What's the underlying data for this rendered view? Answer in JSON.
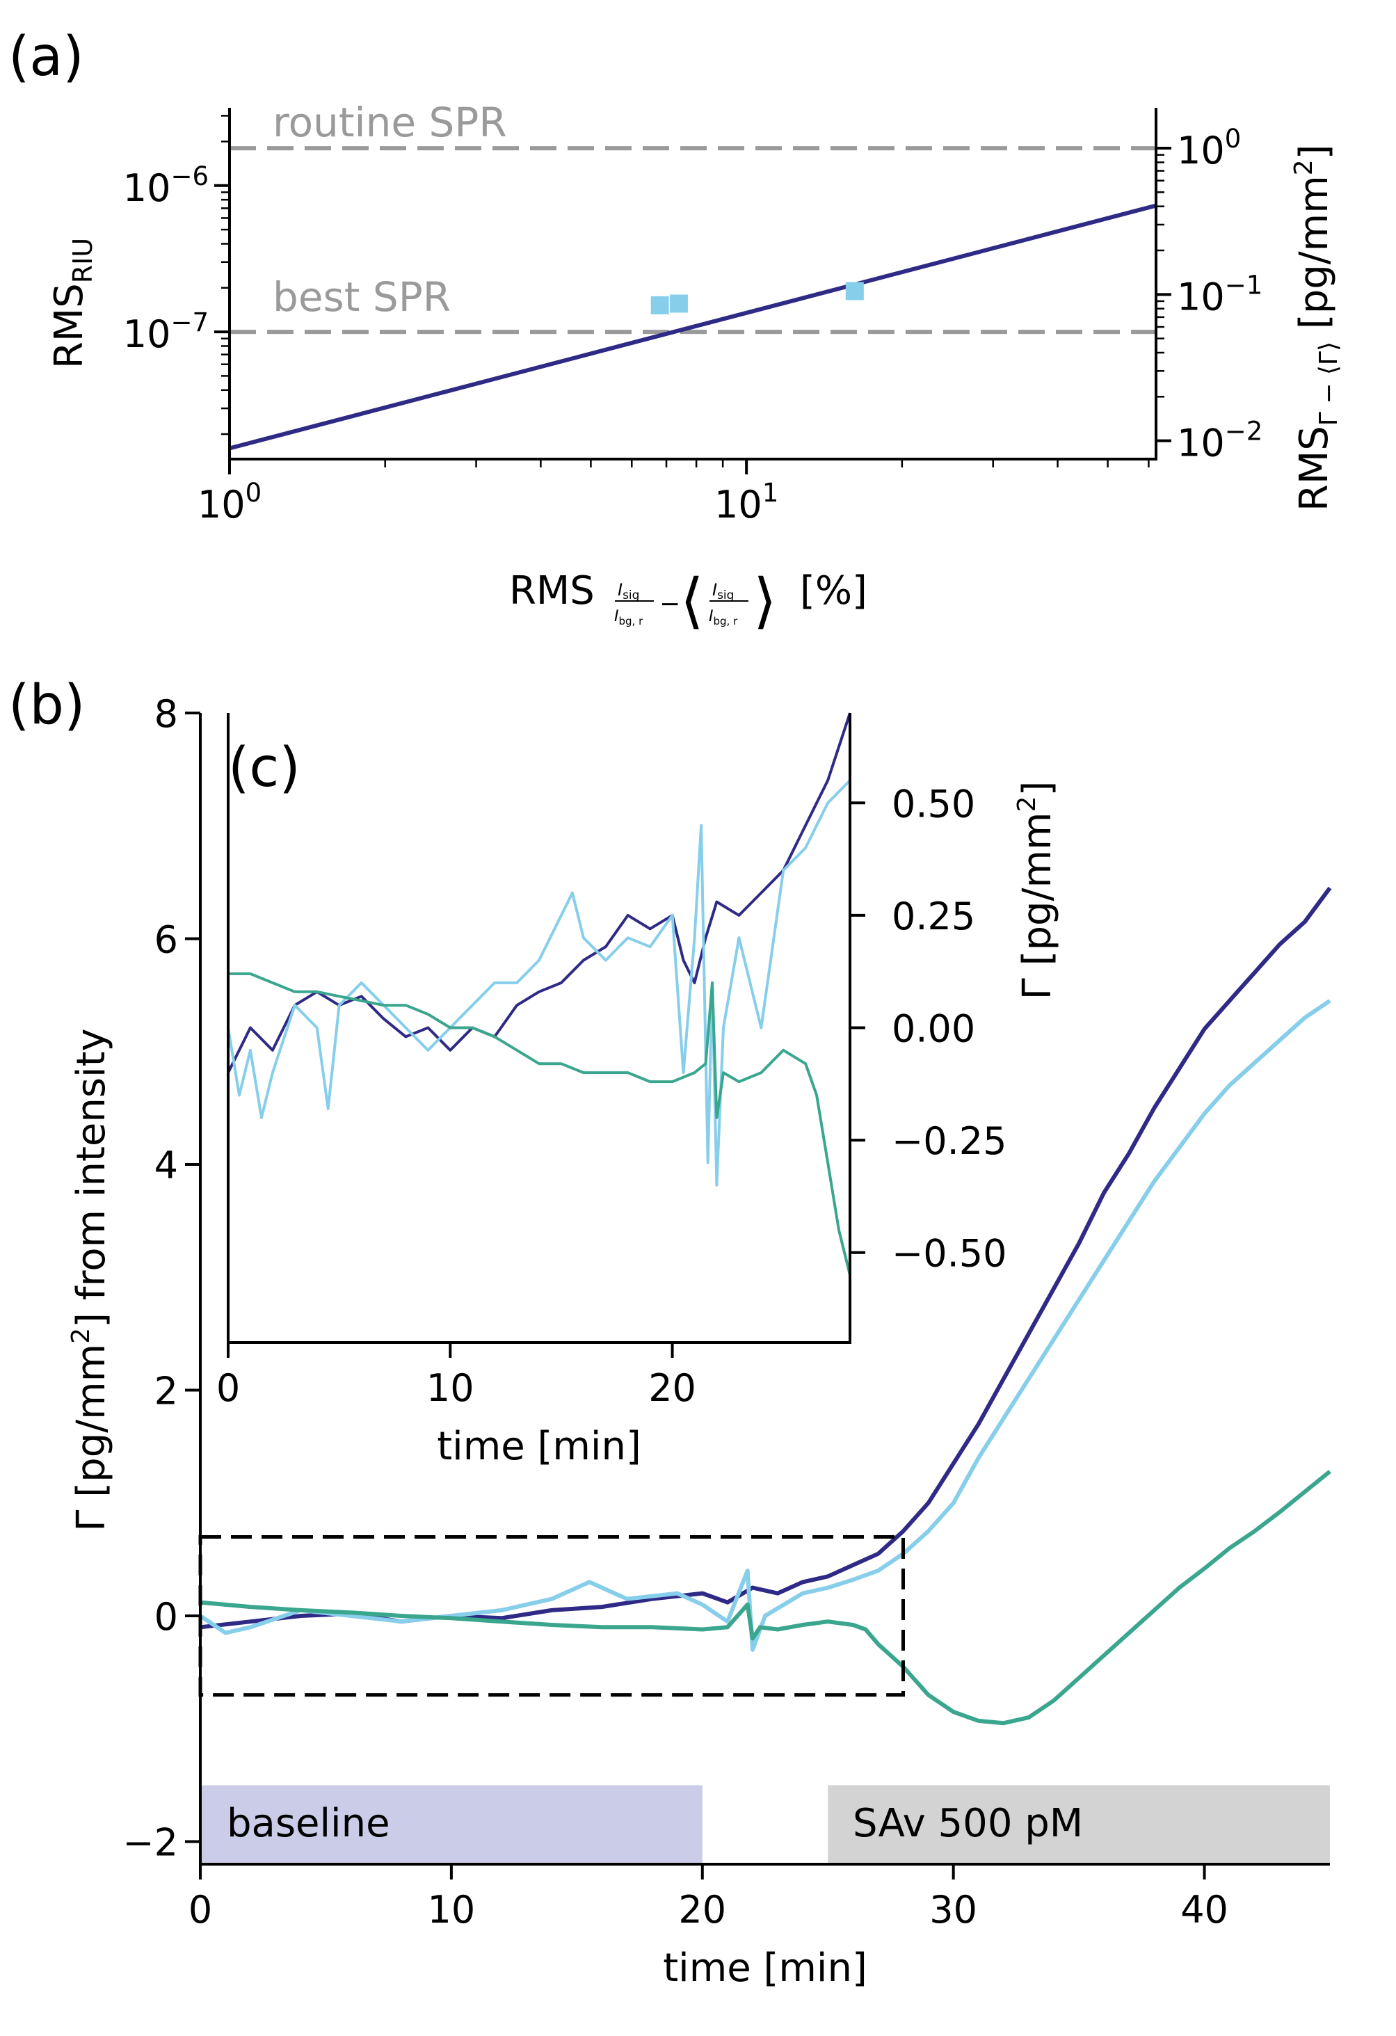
{
  "chart_data": [
    {
      "panel": "(a)",
      "type": "line",
      "xscale": "log",
      "yscale": "log",
      "xlim": [
        1,
        62
      ],
      "ylim": [
        1.35e-08,
        3.4e-06
      ],
      "xticks": [
        {
          "value": 1,
          "label": "10^0"
        },
        {
          "value": 10,
          "label": "10^1"
        }
      ],
      "yticks": [
        {
          "value": 1e-06,
          "label": "10^-6"
        },
        {
          "value": 1e-07,
          "label": "10^-7"
        }
      ],
      "xlabel": "RMS_{I_sig/I_bg,r} − ⟨I_sig/I_bg,r⟩ [%]",
      "ylabel": "RMS_RIU",
      "right_axis": {
        "label": "RMS_{Γ − ⟨Γ⟩} [pg/mm²]",
        "ticks": [
          {
            "value": 1,
            "label": "10^0"
          },
          {
            "value": 0.1,
            "label": "10^-1"
          },
          {
            "value": 0.01,
            "label": "10^-2"
          }
        ],
        "factor_per_riu": 555000
      },
      "reference_lines": [
        {
          "name": "routine SPR",
          "y": 1.8e-06,
          "color": "#9a9a9a"
        },
        {
          "name": "best SPR",
          "y": 1e-07,
          "color": "#9a9a9a"
        }
      ],
      "series": [
        {
          "name": "fit",
          "type": "line",
          "color": "#2e2a85",
          "x": [
            1,
            62
          ],
          "y": [
            1.6e-08,
            7.3e-07
          ]
        },
        {
          "name": "measurements",
          "type": "scatter",
          "color": "#87ceeb",
          "x": [
            6.8,
            7.4,
            16.2
          ],
          "y": [
            1.52e-07,
            1.56e-07,
            1.9e-07
          ]
        }
      ]
    },
    {
      "panel": "(b)",
      "type": "line",
      "xlim": [
        0,
        45
      ],
      "ylim": [
        -2.2,
        8
      ],
      "xticks": [
        0,
        10,
        20,
        30,
        40
      ],
      "yticks": [
        -2,
        0,
        2,
        4,
        6,
        8
      ],
      "xlabel": "time [min]",
      "ylabel": "Γ [pg/mm²] from intensity",
      "bands": [
        {
          "label": "baseline",
          "x0": 0,
          "x1": 20,
          "y0": -2.2,
          "y1": -1.5,
          "color": "#cacce8"
        },
        {
          "label": "SAv 500 pM",
          "x0": 25,
          "x1": 45,
          "y0": -2.2,
          "y1": -1.5,
          "color": "#d3d3d3"
        }
      ],
      "zoom_box": {
        "x0": 0,
        "x1": 28,
        "y0": -0.7,
        "y1": 0.7
      },
      "series": [
        {
          "name": "dark-blue",
          "color": "#2e2a85",
          "x": [
            0,
            2,
            4,
            6,
            8,
            10,
            12,
            14,
            16,
            18,
            20,
            21,
            22,
            23,
            24,
            25,
            26,
            27,
            28,
            29,
            30,
            31,
            32,
            33,
            34,
            35,
            36,
            37,
            38,
            39,
            40,
            41,
            42,
            43,
            44,
            45
          ],
          "y": [
            -0.1,
            -0.05,
            0.0,
            0.02,
            -0.05,
            0.0,
            -0.02,
            0.05,
            0.08,
            0.15,
            0.2,
            0.12,
            0.25,
            0.2,
            0.3,
            0.35,
            0.45,
            0.55,
            0.75,
            1.0,
            1.35,
            1.7,
            2.1,
            2.5,
            2.9,
            3.3,
            3.75,
            4.1,
            4.5,
            4.85,
            5.2,
            5.45,
            5.7,
            5.95,
            6.15,
            6.45
          ]
        },
        {
          "name": "light-blue",
          "color": "#87ceeb",
          "x": [
            0,
            1,
            2,
            4,
            6,
            8,
            10,
            12,
            14,
            15.5,
            17,
            19,
            20,
            21,
            21.8,
            22,
            22.5,
            24,
            25,
            26,
            27,
            28,
            29,
            30,
            31,
            32,
            33,
            34,
            35,
            36,
            37,
            38,
            39,
            40,
            41,
            42,
            43,
            44,
            45
          ],
          "y": [
            0.0,
            -0.15,
            -0.1,
            0.05,
            0.0,
            -0.05,
            0.0,
            0.05,
            0.15,
            0.3,
            0.15,
            0.2,
            0.1,
            -0.05,
            0.4,
            -0.3,
            0.0,
            0.2,
            0.25,
            0.32,
            0.4,
            0.55,
            0.75,
            1.0,
            1.4,
            1.75,
            2.1,
            2.45,
            2.8,
            3.15,
            3.5,
            3.85,
            4.15,
            4.45,
            4.7,
            4.9,
            5.1,
            5.3,
            5.45
          ]
        },
        {
          "name": "teal",
          "color": "#3aa68e",
          "x": [
            0,
            2,
            4,
            6,
            8,
            10,
            12,
            14,
            16,
            18,
            20,
            21,
            21.8,
            22,
            22.3,
            23,
            24,
            25,
            26,
            26.5,
            27,
            28,
            29,
            30,
            31,
            32,
            33,
            34,
            35,
            36,
            37,
            38,
            39,
            40,
            41,
            42,
            43,
            44,
            45
          ],
          "y": [
            0.12,
            0.08,
            0.05,
            0.03,
            0.0,
            -0.02,
            -0.05,
            -0.08,
            -0.1,
            -0.1,
            -0.12,
            -0.1,
            0.1,
            -0.2,
            -0.1,
            -0.12,
            -0.08,
            -0.05,
            -0.08,
            -0.12,
            -0.25,
            -0.45,
            -0.7,
            -0.85,
            -0.93,
            -0.95,
            -0.9,
            -0.75,
            -0.55,
            -0.35,
            -0.15,
            0.05,
            0.25,
            0.42,
            0.6,
            0.75,
            0.92,
            1.1,
            1.28
          ]
        }
      ]
    },
    {
      "panel": "(c)",
      "type": "line",
      "xlim": [
        0,
        28
      ],
      "ylim": [
        -0.7,
        0.7
      ],
      "xticks": [
        0,
        10,
        20
      ],
      "yticks": [
        -0.5,
        -0.25,
        0.0,
        0.25,
        0.5
      ],
      "ytick_labels": [
        "−0.50",
        "−0.25",
        "0.00",
        "0.25",
        "0.50"
      ],
      "xlabel": "time [min]",
      "ylabel": "Γ [pg/mm²]",
      "series": [
        {
          "name": "dark-blue",
          "color": "#2e2a85",
          "x": [
            0,
            1,
            2,
            3,
            4,
            5,
            6,
            7,
            8,
            9,
            10,
            11,
            12,
            13,
            14,
            15,
            16,
            17,
            18,
            19,
            20,
            20.5,
            21,
            21.5,
            22,
            23,
            24,
            25,
            26,
            27,
            28
          ],
          "y": [
            -0.1,
            0.0,
            -0.05,
            0.05,
            0.08,
            0.05,
            0.07,
            0.02,
            -0.02,
            0.0,
            -0.05,
            0.0,
            -0.02,
            0.05,
            0.08,
            0.1,
            0.15,
            0.18,
            0.25,
            0.22,
            0.25,
            0.15,
            0.1,
            0.2,
            0.28,
            0.25,
            0.3,
            0.35,
            0.45,
            0.55,
            0.7
          ]
        },
        {
          "name": "light-blue",
          "color": "#87ceeb",
          "x": [
            0,
            0.5,
            1,
            1.5,
            2,
            3,
            4,
            4.5,
            5,
            6,
            7,
            8,
            9,
            10,
            11,
            12,
            13,
            14,
            15,
            15.5,
            16,
            17,
            18,
            19,
            20,
            20.5,
            21,
            21.3,
            21.6,
            21.8,
            22,
            22.3,
            23,
            24,
            25,
            26,
            27,
            28
          ],
          "y": [
            0.0,
            -0.15,
            -0.05,
            -0.2,
            -0.1,
            0.05,
            0.0,
            -0.18,
            0.05,
            0.1,
            0.05,
            0.0,
            -0.05,
            0.0,
            0.05,
            0.1,
            0.1,
            0.15,
            0.25,
            0.3,
            0.2,
            0.15,
            0.2,
            0.18,
            0.25,
            -0.1,
            0.2,
            0.45,
            -0.3,
            0.1,
            -0.35,
            0.0,
            0.2,
            0.0,
            0.35,
            0.4,
            0.5,
            0.55
          ]
        },
        {
          "name": "teal",
          "color": "#3aa68e",
          "x": [
            0,
            1,
            2,
            3,
            4,
            5,
            6,
            7,
            8,
            9,
            10,
            11,
            12,
            13,
            14,
            15,
            16,
            17,
            18,
            19,
            20,
            21,
            21.5,
            21.8,
            22,
            22.3,
            23,
            24,
            25,
            26,
            26.5,
            27,
            27.5,
            28
          ],
          "y": [
            0.12,
            0.12,
            0.1,
            0.08,
            0.08,
            0.07,
            0.06,
            0.05,
            0.05,
            0.03,
            0.0,
            0.0,
            -0.02,
            -0.05,
            -0.08,
            -0.08,
            -0.1,
            -0.1,
            -0.1,
            -0.12,
            -0.12,
            -0.1,
            -0.08,
            0.1,
            -0.2,
            -0.1,
            -0.12,
            -0.1,
            -0.05,
            -0.08,
            -0.15,
            -0.3,
            -0.45,
            -0.55
          ]
        }
      ]
    }
  ],
  "labels": {
    "a": "(a)",
    "b": "(b)",
    "c": "(c)",
    "routine": "routine SPR",
    "best": "best SPR",
    "baseline": "baseline",
    "sav": "SAv 500 pM",
    "a_ylabel_main": "RMS",
    "a_ylabel_sub": "RIU",
    "a_xlabel_main": "RMS",
    "a_xlabel_units": "[%]",
    "a_right_main": "RMS",
    "a_right_sub": "Γ − ⟨Γ⟩",
    "a_right_units": "[pg/mm",
    "b_ylabel": "Γ [pg/mm",
    "b_ylabel_tail": "] from intensity",
    "c_ylabel": "Γ [pg/mm",
    "xlabel_time": "time [min]",
    "sup2": "2",
    "close_bracket": "]"
  }
}
